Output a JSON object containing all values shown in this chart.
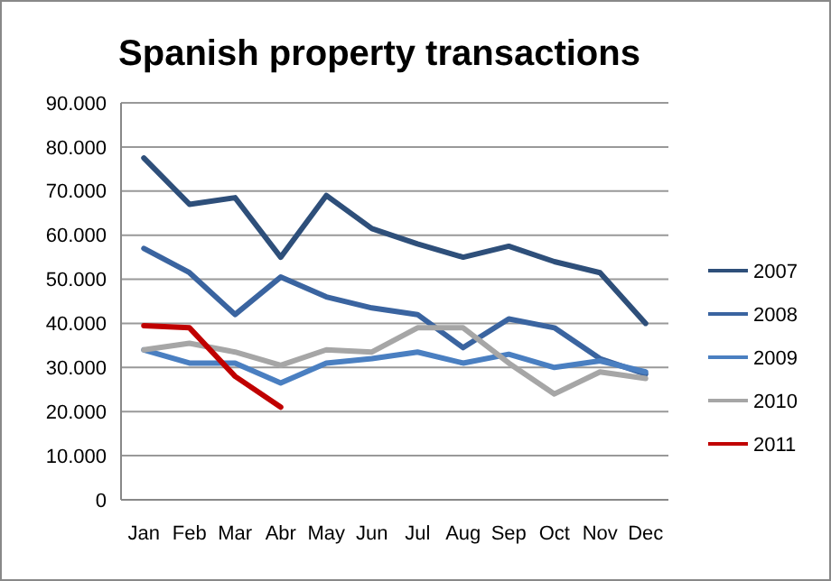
{
  "chart_data": {
    "type": "line",
    "title": "Spanish property transactions",
    "categories": [
      "Jan",
      "Feb",
      "Mar",
      "Abr",
      "May",
      "Jun",
      "Jul",
      "Aug",
      "Sep",
      "Oct",
      "Nov",
      "Dec"
    ],
    "series": [
      {
        "name": "2007",
        "color": "#2e4f7a",
        "values": [
          77500,
          67000,
          68500,
          55000,
          69000,
          61500,
          58000,
          55000,
          57500,
          54000,
          51500,
          40000
        ]
      },
      {
        "name": "2008",
        "color": "#3a64a0",
        "values": [
          57000,
          51500,
          42000,
          50500,
          46000,
          43500,
          42000,
          34500,
          41000,
          39000,
          32000,
          28500
        ]
      },
      {
        "name": "2009",
        "color": "#4a7fc1",
        "values": [
          34000,
          31000,
          31000,
          26500,
          31000,
          32000,
          33500,
          31000,
          33000,
          30000,
          31500,
          29000
        ]
      },
      {
        "name": "2010",
        "color": "#a6a6a6",
        "values": [
          34000,
          35500,
          33500,
          30500,
          34000,
          33500,
          39000,
          39000,
          31000,
          24000,
          29000,
          27500
        ]
      },
      {
        "name": "2011",
        "color": "#c00000",
        "values": [
          39500,
          39000,
          28000,
          21000,
          null,
          null,
          null,
          null,
          null,
          null,
          null,
          null
        ]
      }
    ],
    "ylim": [
      0,
      90000
    ],
    "yticks": [
      {
        "value": 0,
        "label": "0"
      },
      {
        "value": 10000,
        "label": "10.000"
      },
      {
        "value": 20000,
        "label": "20.000"
      },
      {
        "value": 30000,
        "label": "30.000"
      },
      {
        "value": 40000,
        "label": "40.000"
      },
      {
        "value": 50000,
        "label": "50.000"
      },
      {
        "value": 60000,
        "label": "60.000"
      },
      {
        "value": 70000,
        "label": "70.000"
      },
      {
        "value": 80000,
        "label": "80.000"
      },
      {
        "value": 90000,
        "label": "90.000"
      }
    ],
    "grid": "y",
    "legend": "right",
    "marker": "none",
    "line_style": "solid"
  }
}
